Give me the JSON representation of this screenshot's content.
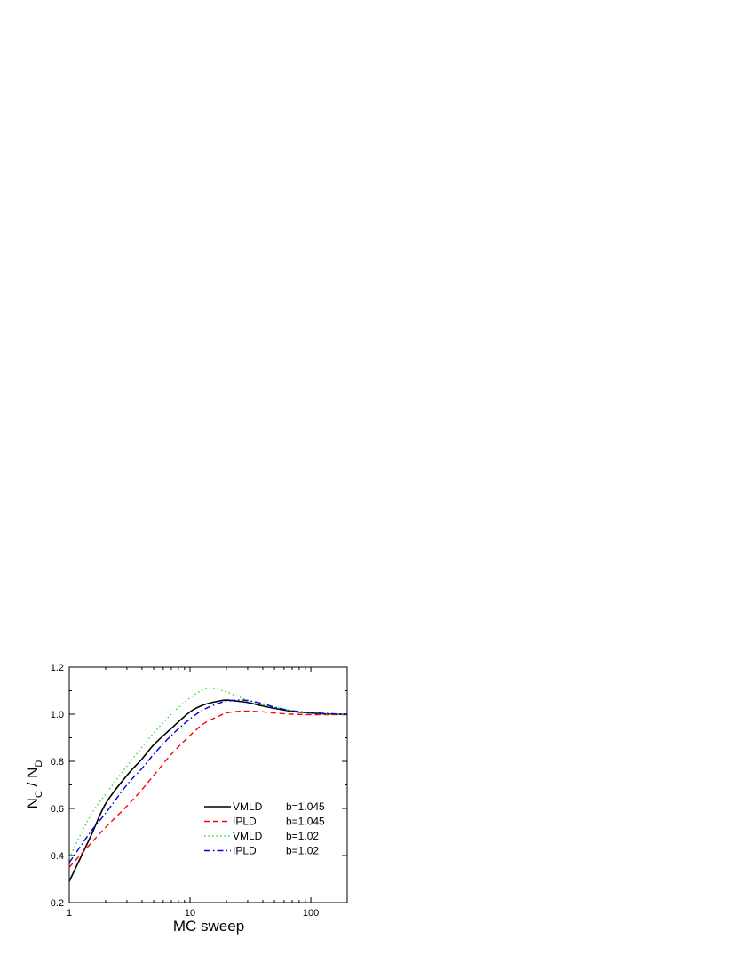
{
  "chart_data": {
    "type": "line",
    "xlabel": "MC sweep",
    "ylabel": {
      "main1": "N",
      "sub1": "C",
      "sep": " / ",
      "main2": "N",
      "sub2": "D"
    },
    "xscale": "log",
    "xlim": [
      1,
      200
    ],
    "ylim": [
      0.2,
      1.2
    ],
    "x_ticks": [
      {
        "value": 1,
        "label": "1"
      },
      {
        "value": 10,
        "label": "10"
      },
      {
        "value": 100,
        "label": "100"
      }
    ],
    "y_ticks": [
      {
        "value": 0.2,
        "label": "0.2"
      },
      {
        "value": 0.4,
        "label": "0.4"
      },
      {
        "value": 0.6,
        "label": "0.6"
      },
      {
        "value": 0.8,
        "label": "0.8"
      },
      {
        "value": 1.0,
        "label": "1.0"
      },
      {
        "value": 1.2,
        "label": "1.2"
      }
    ],
    "legend_position": "bottom-right",
    "series": [
      {
        "name": "VMLD",
        "param": "b=1.045",
        "color": "#000000",
        "dash": "solid",
        "x": [
          1,
          1.5,
          2,
          3,
          4,
          5,
          7,
          10,
          13,
          17,
          20,
          25,
          30,
          40,
          50,
          70,
          100,
          150,
          200
        ],
        "y": [
          0.29,
          0.48,
          0.62,
          0.74,
          0.81,
          0.87,
          0.94,
          1.01,
          1.04,
          1.055,
          1.06,
          1.055,
          1.05,
          1.035,
          1.025,
          1.012,
          1.005,
          1.0,
          1.0
        ]
      },
      {
        "name": "IPLD",
        "param": "b=1.045",
        "color": "#ff0000",
        "dash": "dashed",
        "x": [
          1,
          1.5,
          2,
          3,
          4,
          5,
          7,
          10,
          13,
          17,
          20,
          25,
          30,
          40,
          50,
          70,
          100,
          150,
          200
        ],
        "y": [
          0.35,
          0.45,
          0.52,
          0.61,
          0.68,
          0.74,
          0.83,
          0.91,
          0.96,
          0.99,
          1.005,
          1.012,
          1.013,
          1.01,
          1.005,
          1.0,
          0.998,
          0.998,
          0.998
        ]
      },
      {
        "name": "VMLD",
        "param": "b=1.02",
        "color": "#33dd33",
        "dash": "dotted",
        "x": [
          1,
          1.5,
          2,
          3,
          4,
          5,
          7,
          10,
          13,
          15,
          17,
          20,
          25,
          30,
          40,
          50,
          70,
          100,
          150,
          200
        ],
        "y": [
          0.39,
          0.57,
          0.66,
          0.78,
          0.86,
          0.92,
          1.0,
          1.07,
          1.105,
          1.11,
          1.105,
          1.095,
          1.075,
          1.06,
          1.04,
          1.03,
          1.015,
          1.005,
          1.0,
          1.0
        ]
      },
      {
        "name": "IPLD",
        "param": "b=1.02",
        "color": "#0000dd",
        "dash": "dashdot",
        "x": [
          1,
          1.5,
          2,
          3,
          4,
          5,
          7,
          10,
          13,
          17,
          20,
          25,
          30,
          40,
          50,
          70,
          100,
          150,
          200
        ],
        "y": [
          0.37,
          0.5,
          0.58,
          0.7,
          0.77,
          0.83,
          0.91,
          0.98,
          1.02,
          1.045,
          1.055,
          1.06,
          1.058,
          1.045,
          1.03,
          1.015,
          1.007,
          1.002,
          1.0
        ]
      }
    ]
  }
}
